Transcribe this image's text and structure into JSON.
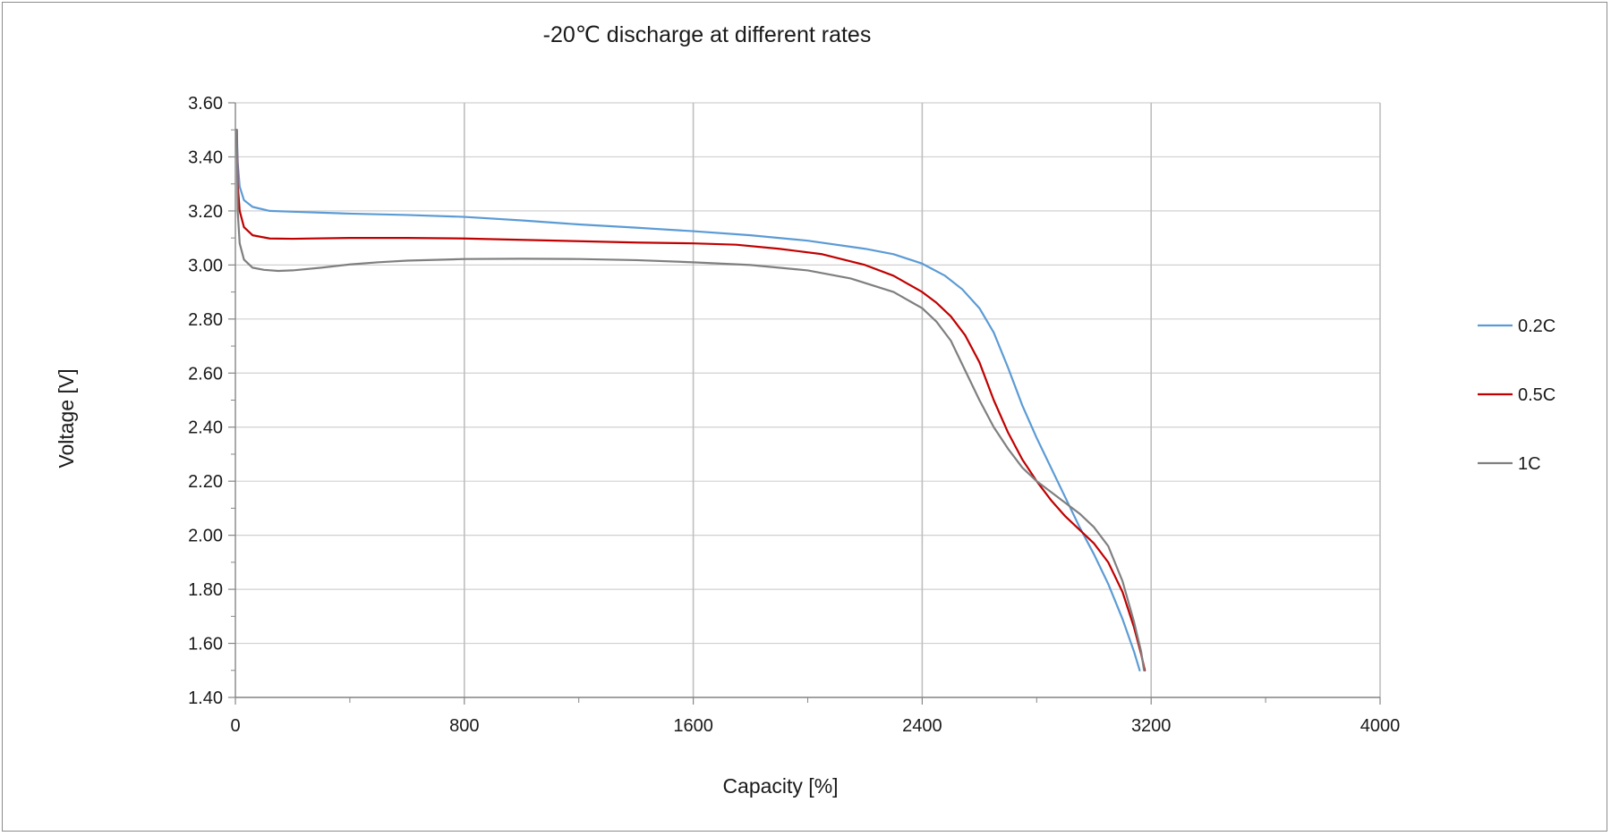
{
  "chart_data": {
    "type": "line",
    "title": "-20℃ discharge at different rates",
    "xlabel": "Capacity [%]",
    "ylabel": "Voltage [V]",
    "xlim": [
      0,
      4000
    ],
    "ylim": [
      1.4,
      3.6
    ],
    "xticks": [
      "0",
      "800",
      "1600",
      "2400",
      "3200",
      "4000"
    ],
    "yticks": [
      "1.40",
      "1.60",
      "1.80",
      "2.00",
      "2.20",
      "2.40",
      "2.60",
      "2.80",
      "3.00",
      "3.20",
      "3.40",
      "3.60"
    ],
    "grid": true,
    "legend_position": "right",
    "series": [
      {
        "name": "0.2C",
        "color": "#5b9bd5",
        "points": [
          [
            5,
            3.5
          ],
          [
            8,
            3.38
          ],
          [
            15,
            3.29
          ],
          [
            30,
            3.24
          ],
          [
            60,
            3.215
          ],
          [
            120,
            3.2
          ],
          [
            200,
            3.197
          ],
          [
            400,
            3.19
          ],
          [
            600,
            3.185
          ],
          [
            800,
            3.178
          ],
          [
            1000,
            3.165
          ],
          [
            1200,
            3.15
          ],
          [
            1400,
            3.138
          ],
          [
            1600,
            3.125
          ],
          [
            1800,
            3.11
          ],
          [
            2000,
            3.09
          ],
          [
            2200,
            3.06
          ],
          [
            2300,
            3.04
          ],
          [
            2400,
            3.005
          ],
          [
            2480,
            2.96
          ],
          [
            2540,
            2.91
          ],
          [
            2600,
            2.84
          ],
          [
            2650,
            2.75
          ],
          [
            2700,
            2.62
          ],
          [
            2750,
            2.48
          ],
          [
            2800,
            2.36
          ],
          [
            2850,
            2.25
          ],
          [
            2900,
            2.14
          ],
          [
            2950,
            2.03
          ],
          [
            3000,
            1.93
          ],
          [
            3050,
            1.82
          ],
          [
            3100,
            1.69
          ],
          [
            3140,
            1.57
          ],
          [
            3160,
            1.5
          ]
        ]
      },
      {
        "name": "0.5C",
        "color": "#c00000",
        "points": [
          [
            5,
            3.5
          ],
          [
            8,
            3.3
          ],
          [
            15,
            3.2
          ],
          [
            30,
            3.14
          ],
          [
            60,
            3.11
          ],
          [
            120,
            3.098
          ],
          [
            200,
            3.097
          ],
          [
            400,
            3.1
          ],
          [
            600,
            3.1
          ],
          [
            800,
            3.098
          ],
          [
            1000,
            3.093
          ],
          [
            1200,
            3.088
          ],
          [
            1400,
            3.083
          ],
          [
            1600,
            3.08
          ],
          [
            1750,
            3.075
          ],
          [
            1900,
            3.06
          ],
          [
            2050,
            3.04
          ],
          [
            2200,
            3.0
          ],
          [
            2300,
            2.96
          ],
          [
            2400,
            2.9
          ],
          [
            2450,
            2.86
          ],
          [
            2500,
            2.81
          ],
          [
            2550,
            2.74
          ],
          [
            2600,
            2.64
          ],
          [
            2650,
            2.5
          ],
          [
            2700,
            2.38
          ],
          [
            2750,
            2.28
          ],
          [
            2800,
            2.2
          ],
          [
            2850,
            2.13
          ],
          [
            2900,
            2.07
          ],
          [
            2950,
            2.02
          ],
          [
            3000,
            1.97
          ],
          [
            3050,
            1.9
          ],
          [
            3100,
            1.79
          ],
          [
            3140,
            1.66
          ],
          [
            3165,
            1.56
          ],
          [
            3178,
            1.5
          ]
        ]
      },
      {
        "name": "1C",
        "color": "#7f7f7f",
        "points": [
          [
            5,
            3.5
          ],
          [
            8,
            3.2
          ],
          [
            15,
            3.08
          ],
          [
            30,
            3.02
          ],
          [
            60,
            2.99
          ],
          [
            100,
            2.982
          ],
          [
            150,
            2.978
          ],
          [
            200,
            2.98
          ],
          [
            300,
            2.99
          ],
          [
            400,
            3.002
          ],
          [
            500,
            3.01
          ],
          [
            600,
            3.016
          ],
          [
            800,
            3.022
          ],
          [
            1000,
            3.023
          ],
          [
            1200,
            3.022
          ],
          [
            1400,
            3.018
          ],
          [
            1600,
            3.01
          ],
          [
            1800,
            3.0
          ],
          [
            2000,
            2.98
          ],
          [
            2150,
            2.95
          ],
          [
            2300,
            2.9
          ],
          [
            2400,
            2.84
          ],
          [
            2450,
            2.79
          ],
          [
            2500,
            2.72
          ],
          [
            2550,
            2.61
          ],
          [
            2600,
            2.5
          ],
          [
            2650,
            2.4
          ],
          [
            2700,
            2.32
          ],
          [
            2750,
            2.25
          ],
          [
            2800,
            2.2
          ],
          [
            2850,
            2.16
          ],
          [
            2900,
            2.12
          ],
          [
            2950,
            2.08
          ],
          [
            3000,
            2.03
          ],
          [
            3050,
            1.96
          ],
          [
            3100,
            1.83
          ],
          [
            3140,
            1.68
          ],
          [
            3165,
            1.57
          ],
          [
            3175,
            1.5
          ]
        ]
      }
    ]
  }
}
